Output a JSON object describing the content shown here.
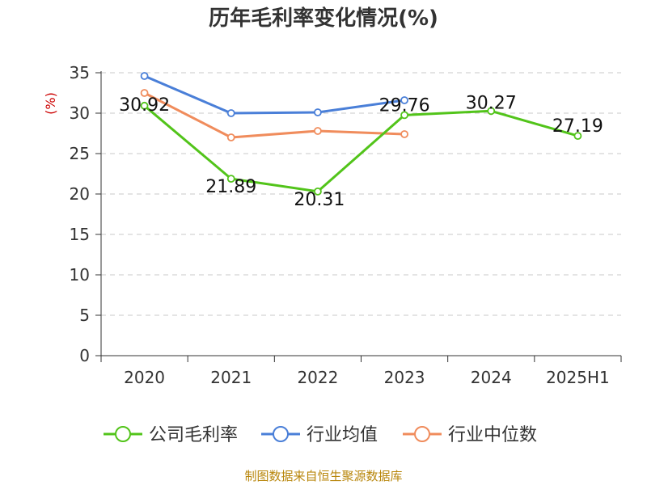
{
  "chart_data": {
    "type": "line",
    "title": "历年毛利率变化情况(%)",
    "ylabel": "(%)",
    "xlabel": "",
    "categories": [
      "2020",
      "2021",
      "2022",
      "2023",
      "2024",
      "2025H1"
    ],
    "ylim": [
      0,
      35
    ],
    "yticks": [
      0,
      5,
      10,
      15,
      20,
      25,
      30,
      35
    ],
    "grid": "horizontal-dashed",
    "legend_position": "bottom",
    "series": [
      {
        "name": "公司毛利率",
        "color": "#52c41a",
        "values": [
          30.92,
          21.89,
          20.31,
          29.76,
          30.27,
          27.19
        ],
        "labels": [
          "30.92",
          "21.89",
          "20.31",
          "29.76",
          "30.27",
          "27.19"
        ]
      },
      {
        "name": "行业均值",
        "color": "#4a7fd8",
        "values": [
          34.6,
          30.0,
          30.1,
          31.6,
          null,
          null
        ]
      },
      {
        "name": "行业中位数",
        "color": "#f08c5c",
        "values": [
          32.5,
          27.0,
          27.8,
          27.4,
          null,
          null
        ]
      }
    ]
  },
  "source_text": "制图数据来自恒生聚源数据库"
}
